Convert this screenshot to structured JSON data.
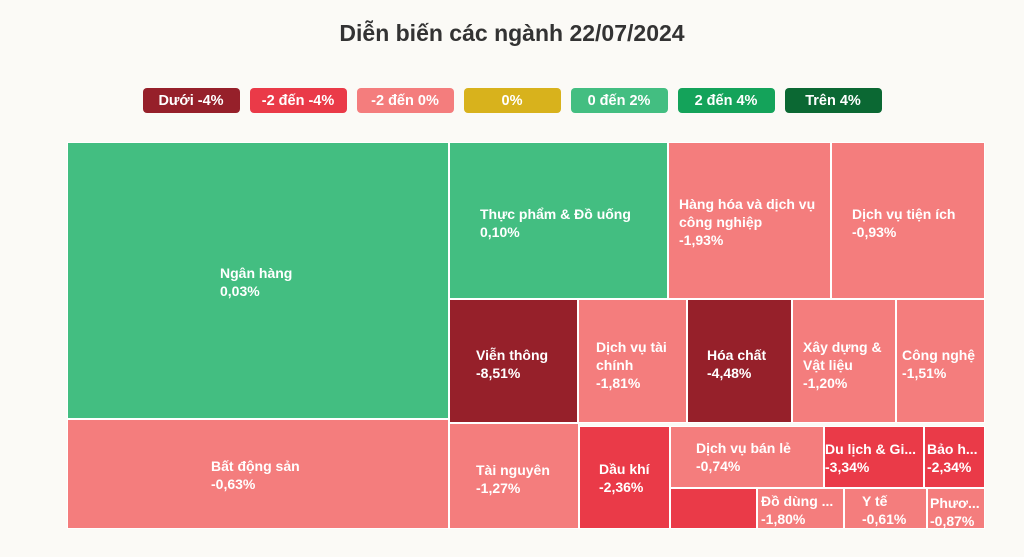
{
  "colors": {
    "below_minus_4": "#96202a",
    "minus_2_to_minus_4": "#ea3a48",
    "minus_2_to_0": "#f47d7d",
    "zero": "#d8b21c",
    "zero_to_2": "#43be81",
    "two_to_4": "#14a35a",
    "above_4": "#0b6833"
  },
  "legend": [
    {
      "label": "Dưới -4%",
      "color": "#96202a"
    },
    {
      "label": "-2 đến -4%",
      "color": "#ea3a48"
    },
    {
      "label": "-2 đến 0%",
      "color": "#f47d7d"
    },
    {
      "label": "0%",
      "color": "#d8b21c"
    },
    {
      "label": "0 đến 2%",
      "color": "#43be81"
    },
    {
      "label": "2 đến 4%",
      "color": "#14a35a"
    },
    {
      "label": "Trên 4%",
      "color": "#0b6833"
    }
  ],
  "chart_data": {
    "type": "treemap",
    "title": "Diễn biến các ngành 22/07/2024",
    "items": [
      {
        "name": "Ngân hàng",
        "value_label": "0,03%",
        "change": 0.03,
        "color": "#43be81"
      },
      {
        "name": "Bất động sản",
        "value_label": "-0,63%",
        "change": -0.63,
        "color": "#f47d7d"
      },
      {
        "name": "Thực phẩm & Đồ uống",
        "value_label": "0,10%",
        "change": 0.1,
        "color": "#43be81"
      },
      {
        "name": "Hàng hóa và dịch vụ công nghiệp",
        "value_label": "-1,93%",
        "change": -1.93,
        "color": "#f47d7d"
      },
      {
        "name": "Dịch vụ tiện ích",
        "value_label": "-0,93%",
        "change": -0.93,
        "color": "#f47d7d"
      },
      {
        "name": "Viễn thông",
        "value_label": "-8,51%",
        "change": -8.51,
        "color": "#96202a"
      },
      {
        "name": "Dịch vụ tài chính",
        "value_label": "-1,81%",
        "change": -1.81,
        "color": "#f47d7d"
      },
      {
        "name": "Hóa chất",
        "value_label": "-4,48%",
        "change": -4.48,
        "color": "#96202a"
      },
      {
        "name": "Xây dựng & Vật liệu",
        "value_label": "-1,20%",
        "change": -1.2,
        "color": "#f47d7d"
      },
      {
        "name": "Công nghệ",
        "value_label": "-1,51%",
        "change": -1.51,
        "color": "#f47d7d"
      },
      {
        "name": "Tài nguyên",
        "value_label": "-1,27%",
        "change": -1.27,
        "color": "#f47d7d"
      },
      {
        "name": "Dầu khí",
        "value_label": "-2,36%",
        "change": -2.36,
        "color": "#ea3a48"
      },
      {
        "name": "Dịch vụ bán lẻ",
        "value_label": "-0,74%",
        "change": -0.74,
        "color": "#f47d7d"
      },
      {
        "name": "Du lịch & Giải trí",
        "display_name": "Du lịch & Gi...",
        "value_label": "-3,34%",
        "change": -3.34,
        "color": "#ea3a48"
      },
      {
        "name": "Bảo hiểm",
        "display_name": "Bảo h...",
        "value_label": "-2,34%",
        "change": -2.34,
        "color": "#ea3a48"
      },
      {
        "name": "",
        "value_label": "",
        "change": null,
        "color": "#ea3a48"
      },
      {
        "name": "Đồ dùng cá nhân và đồ gia dụng",
        "display_name": "Đồ dùng ...",
        "value_label": "-1,80%",
        "change": -1.8,
        "color": "#f47d7d"
      },
      {
        "name": "Y tế",
        "value_label": "-0,61%",
        "change": -0.61,
        "color": "#f47d7d"
      },
      {
        "name": "Phương tiện truyền thông",
        "display_name": "Phươ...",
        "value_label": "-0,87%",
        "change": -0.87,
        "color": "#f47d7d"
      }
    ]
  }
}
